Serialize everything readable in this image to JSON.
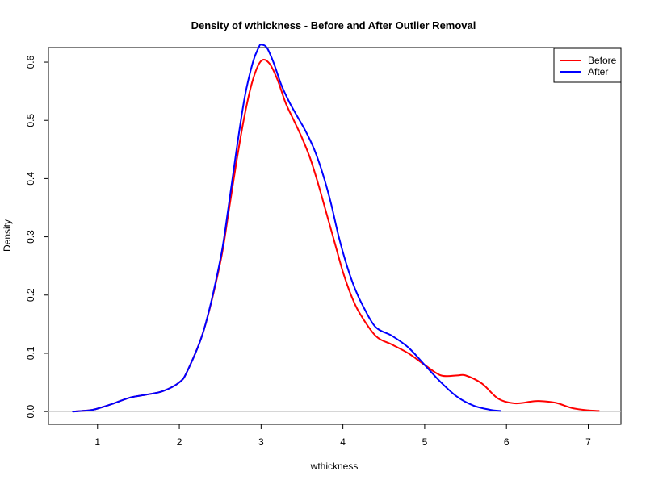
{
  "chart_data": {
    "type": "line",
    "title": "Density of wthickness - Before and After Outlier Removal",
    "xlabel": "wthickness",
    "ylabel": "Density",
    "xlim": [
      0.4,
      7.4
    ],
    "ylim": [
      -0.022,
      0.625
    ],
    "xticks": [
      1,
      2,
      3,
      4,
      5,
      6,
      7
    ],
    "yticks": [
      0.0,
      0.1,
      0.2,
      0.3,
      0.4,
      0.5,
      0.6
    ],
    "ytick_labels": [
      "0.0",
      "0.1",
      "0.2",
      "0.3",
      "0.4",
      "0.5",
      "0.6"
    ],
    "baseline": 0,
    "grid": false,
    "legend_position": "top-right",
    "series": [
      {
        "name": "Before",
        "color": "#ff0000",
        "x": [
          0.7,
          0.9,
          1.0,
          1.2,
          1.4,
          1.6,
          1.8,
          2.0,
          2.1,
          2.3,
          2.5,
          2.6,
          2.7,
          2.8,
          2.9,
          3.0,
          3.1,
          3.2,
          3.3,
          3.4,
          3.5,
          3.6,
          3.7,
          3.8,
          3.9,
          4.0,
          4.1,
          4.2,
          4.4,
          4.6,
          4.8,
          5.0,
          5.2,
          5.4,
          5.5,
          5.7,
          5.9,
          6.1,
          6.3,
          6.4,
          6.6,
          6.8,
          7.0,
          7.13
        ],
        "y": [
          0.0,
          0.002,
          0.005,
          0.014,
          0.024,
          0.029,
          0.035,
          0.05,
          0.07,
          0.14,
          0.255,
          0.34,
          0.43,
          0.51,
          0.57,
          0.602,
          0.598,
          0.57,
          0.53,
          0.5,
          0.47,
          0.435,
          0.39,
          0.34,
          0.29,
          0.24,
          0.2,
          0.17,
          0.13,
          0.115,
          0.1,
          0.08,
          0.062,
          0.062,
          0.062,
          0.048,
          0.022,
          0.014,
          0.017,
          0.018,
          0.015,
          0.006,
          0.002,
          0.001
        ]
      },
      {
        "name": "After",
        "color": "#0000ff",
        "x": [
          0.7,
          0.9,
          1.0,
          1.2,
          1.4,
          1.6,
          1.8,
          2.0,
          2.1,
          2.3,
          2.5,
          2.6,
          2.7,
          2.8,
          2.9,
          2.97,
          3.0,
          3.07,
          3.15,
          3.25,
          3.35,
          3.45,
          3.55,
          3.65,
          3.75,
          3.85,
          3.95,
          4.05,
          4.15,
          4.25,
          4.4,
          4.6,
          4.8,
          5.0,
          5.2,
          5.4,
          5.6,
          5.8,
          5.93
        ],
        "y": [
          0.0,
          0.002,
          0.005,
          0.014,
          0.024,
          0.029,
          0.035,
          0.05,
          0.07,
          0.14,
          0.26,
          0.35,
          0.45,
          0.54,
          0.6,
          0.625,
          0.63,
          0.625,
          0.6,
          0.56,
          0.53,
          0.505,
          0.48,
          0.45,
          0.41,
          0.36,
          0.3,
          0.25,
          0.21,
          0.18,
          0.145,
          0.13,
          0.11,
          0.08,
          0.05,
          0.025,
          0.01,
          0.003,
          0.001
        ]
      }
    ]
  }
}
